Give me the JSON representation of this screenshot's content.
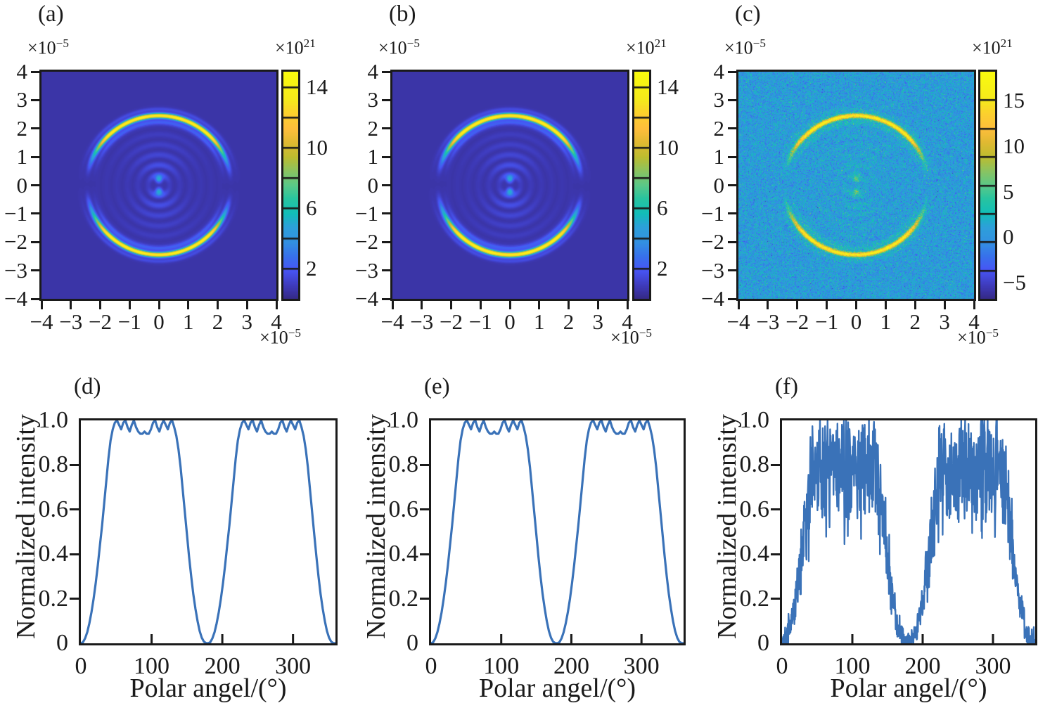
{
  "text": {
    "pow_base": "×10",
    "axis_exp": "−5",
    "cb_exp": "21"
  },
  "colors": {
    "line": "#3a72b8",
    "text": "#1a1a1a",
    "axis": "#1a1a1a",
    "background": "#ffffff",
    "heatmap_low": "#3b35a9",
    "heatmap_high": "#f5e91c"
  },
  "colormap_stops": [
    [
      0.0,
      [
        53,
        42,
        135
      ]
    ],
    [
      0.06,
      [
        63,
        60,
        190
      ]
    ],
    [
      0.125,
      [
        71,
        85,
        245
      ]
    ],
    [
      0.19,
      [
        55,
        115,
        235
      ]
    ],
    [
      0.25,
      [
        50,
        145,
        225
      ]
    ],
    [
      0.315,
      [
        45,
        160,
        218
      ]
    ],
    [
      0.375,
      [
        18,
        190,
        185
      ]
    ],
    [
      0.44,
      [
        40,
        196,
        160
      ]
    ],
    [
      0.5,
      [
        91,
        200,
        136
      ]
    ],
    [
      0.565,
      [
        140,
        195,
        95
      ]
    ],
    [
      0.625,
      [
        189,
        188,
        47
      ]
    ],
    [
      0.69,
      [
        225,
        185,
        50
      ]
    ],
    [
      0.75,
      [
        254,
        190,
        60
      ]
    ],
    [
      0.815,
      [
        252,
        208,
        46
      ]
    ],
    [
      0.875,
      [
        245,
        233,
        28
      ]
    ],
    [
      1.0,
      [
        249,
        251,
        14
      ]
    ]
  ],
  "chart_data": [
    {
      "id": "a",
      "type": "heatmap",
      "label": "(a)",
      "x_tick_labels": [
        "−4",
        "−3",
        "−2",
        "−1",
        "0",
        "1",
        "2",
        "3",
        "4"
      ],
      "y_tick_labels": [
        "4",
        "3",
        "2",
        "1",
        "0",
        "−1",
        "−2",
        "−3",
        "−4"
      ],
      "axis_scale": "×10^−5",
      "xlim": [
        -4e-05,
        4e-05
      ],
      "ylim": [
        -4e-05,
        4e-05
      ],
      "colorbar": {
        "scale": "×10^21",
        "clim": [
          0,
          15
        ],
        "labels": [
          "14",
          "10",
          "6",
          "2"
        ],
        "label_values": [
          14,
          10,
          6,
          2
        ],
        "line_step": 2
      },
      "pattern": {
        "background": 0.55,
        "ring_radius": 2.45,
        "ring_sigma": 0.085,
        "ring_amp": 14.3,
        "companion_radius": 2.22,
        "companion_amp": 1.8,
        "outer_radius": 2.68,
        "outer_amp": 1.0,
        "dot_offset": 0.22,
        "dot_sigma": 0.11,
        "dot_amp": 4.6,
        "ripple_amp": 2.2,
        "ripple_period": 0.36,
        "ripple_decay": 1.0,
        "value_scale": 1.0,
        "noise_sigma": 0,
        "noise_seed": 1,
        "angular_profile": "same curve as panel (d): maxima at 90 and 270 degrees"
      }
    },
    {
      "id": "b",
      "type": "heatmap",
      "label": "(b)",
      "x_tick_labels": [
        "−4",
        "−3",
        "−2",
        "−1",
        "0",
        "1",
        "2",
        "3",
        "4"
      ],
      "y_tick_labels": [
        "4",
        "3",
        "2",
        "1",
        "0",
        "−1",
        "−2",
        "−3",
        "−4"
      ],
      "axis_scale": "×10^−5",
      "xlim": [
        -4e-05,
        4e-05
      ],
      "ylim": [
        -4e-05,
        4e-05
      ],
      "colorbar": {
        "scale": "×10^21",
        "clim": [
          0,
          15
        ],
        "labels": [
          "14",
          "10",
          "6",
          "2"
        ],
        "label_values": [
          14,
          10,
          6,
          2
        ],
        "line_step": 2
      },
      "pattern": {
        "background": 0.55,
        "ring_radius": 2.45,
        "ring_sigma": 0.09,
        "ring_amp": 14.3,
        "companion_radius": 2.22,
        "companion_amp": 1.8,
        "outer_radius": 2.68,
        "outer_amp": 1.0,
        "dot_offset": 0.22,
        "dot_sigma": 0.11,
        "dot_amp": 4.6,
        "ripple_amp": 2.2,
        "ripple_period": 0.36,
        "ripple_decay": 1.0,
        "value_scale": 1.0,
        "noise_sigma": 0,
        "noise_seed": 2,
        "angular_profile": "same curve as panel (e): maxima at 90 and 270 degrees"
      }
    },
    {
      "id": "c",
      "type": "heatmap",
      "label": "(c)",
      "x_tick_labels": [
        "−4",
        "−3",
        "−2",
        "−1",
        "0",
        "1",
        "2",
        "3",
        "4"
      ],
      "y_tick_labels": [
        "4",
        "3",
        "2",
        "1",
        "0",
        "−1",
        "−2",
        "−3",
        "−4"
      ],
      "axis_scale": "×10^−5",
      "xlim": [
        -4e-05,
        4e-05
      ],
      "ylim": [
        -4e-05,
        4e-05
      ],
      "colorbar": {
        "scale": "×10^21",
        "clim": [
          -6.8,
          18.2
        ],
        "labels": [
          "15",
          "10",
          "5",
          "0",
          "−5"
        ],
        "label_values": [
          15,
          10,
          5,
          0,
          -5
        ],
        "line_step": "eighths"
      },
      "pattern": {
        "background": 0.55,
        "ring_radius": 2.45,
        "ring_sigma": 0.085,
        "ring_amp": 14.3,
        "companion_radius": 2.22,
        "companion_amp": 1.8,
        "outer_radius": 2.68,
        "outer_amp": 1.0,
        "dot_offset": 0.22,
        "dot_sigma": 0.11,
        "dot_amp": 4.6,
        "ripple_amp": 2.2,
        "ripple_period": 0.36,
        "ripple_decay": 1.0,
        "value_scale": 1.15,
        "noise_sigma": 1.7,
        "noise_seed": 3,
        "angular_profile": "same curve as panel (f): maxima at 90 and 270 degrees, with noise"
      }
    },
    {
      "id": "d",
      "type": "line",
      "label": "(d)",
      "xlabel": "Polar angel/(°)",
      "ylabel": "Normalized intensity",
      "xlim": [
        0,
        360
      ],
      "ylim": [
        0,
        1
      ],
      "x_ticks": [
        0,
        100,
        200,
        300
      ],
      "x_tick_labels": [
        "0",
        "100",
        "200",
        "300"
      ],
      "y_ticks": [
        0,
        0.2,
        0.4,
        0.6,
        0.8,
        1.0
      ],
      "y_tick_labels": [
        "0",
        "0.2",
        "0.4",
        "0.6",
        "0.8",
        "1.0"
      ],
      "x_start": 0,
      "x_step": 3,
      "y": [
        0,
        0.005,
        0.022,
        0.05,
        0.09,
        0.14,
        0.2,
        0.27,
        0.35,
        0.44,
        0.53,
        0.63,
        0.73,
        0.83,
        0.91,
        0.96,
        0.99,
        1,
        0.98,
        0.96,
        0.99,
        1,
        0.97,
        0.95,
        0.98,
        1,
        0.97,
        0.95,
        0.94,
        0.94,
        0.95,
        0.94,
        0.94,
        0.96,
        0.99,
        1,
        0.97,
        0.95,
        0.98,
        1,
        0.98,
        0.96,
        0.99,
        1,
        0.97,
        0.93,
        0.87,
        0.79,
        0.69,
        0.59,
        0.49,
        0.39,
        0.3,
        0.22,
        0.155,
        0.1,
        0.055,
        0.025,
        0.007,
        0.001,
        0,
        0.005,
        0.022,
        0.05,
        0.09,
        0.14,
        0.2,
        0.27,
        0.35,
        0.44,
        0.53,
        0.63,
        0.73,
        0.83,
        0.91,
        0.96,
        0.99,
        1,
        0.98,
        0.96,
        0.99,
        1,
        0.97,
        0.95,
        0.98,
        1,
        0.97,
        0.95,
        0.94,
        0.94,
        0.95,
        0.94,
        0.94,
        0.96,
        0.99,
        1,
        0.97,
        0.95,
        0.98,
        1,
        0.98,
        0.96,
        0.99,
        1,
        0.97,
        0.93,
        0.87,
        0.79,
        0.69,
        0.59,
        0.49,
        0.39,
        0.3,
        0.22,
        0.155,
        0.1,
        0.055,
        0.025,
        0.007,
        0.001,
        0
      ]
    },
    {
      "id": "e",
      "type": "line",
      "label": "(e)",
      "xlabel": "Polar angel/(°)",
      "ylabel": "Normalized intensity",
      "xlim": [
        0,
        360
      ],
      "ylim": [
        0,
        1
      ],
      "x_ticks": [
        0,
        100,
        200,
        300
      ],
      "x_tick_labels": [
        "0",
        "100",
        "200",
        "300"
      ],
      "y_ticks": [
        0,
        0.2,
        0.4,
        0.6,
        0.8,
        1.0
      ],
      "y_tick_labels": [
        "0",
        "0.2",
        "0.4",
        "0.6",
        "0.8",
        "1.0"
      ],
      "x_start": 0,
      "x_step": 3,
      "y_ref": "d"
    },
    {
      "id": "f",
      "type": "line_noisy",
      "label": "(f)",
      "xlabel": "Polar angel/(°)",
      "ylabel": "Normalized intensity",
      "xlim": [
        0,
        360
      ],
      "ylim": [
        0,
        1
      ],
      "x_ticks": [
        0,
        100,
        200,
        300
      ],
      "x_tick_labels": [
        "0",
        "100",
        "200",
        "300"
      ],
      "y_ticks": [
        0,
        0.2,
        0.4,
        0.6,
        0.8,
        1.0
      ],
      "y_tick_labels": [
        "0",
        "0.2",
        "0.4",
        "0.6",
        "0.8",
        "1.0"
      ],
      "base_ref": "d",
      "base_scale": 0.8,
      "noise_floor": 0.1,
      "noise_amp": 0.3,
      "x_start": 0,
      "x_step": 0.4,
      "seed": 7,
      "plateau_mean": 0.75,
      "plateau_noise_band": [
        0.6,
        0.95
      ]
    }
  ]
}
